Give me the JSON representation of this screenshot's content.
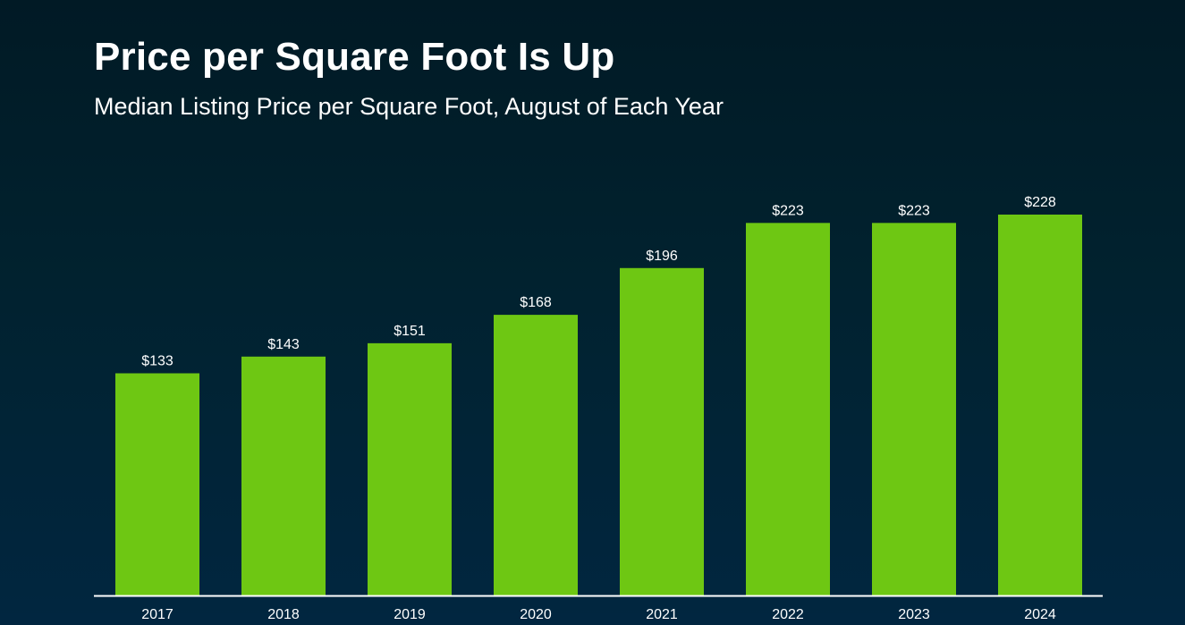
{
  "title": "Price per Square Foot Is Up",
  "subtitle": "Median Listing Price per Square Foot, August of Each Year",
  "colors": {
    "bar": "#6ec713",
    "axis": "#ffffff",
    "background_top": "#011a25",
    "background_bottom": "#012640"
  },
  "chart_data": {
    "type": "bar",
    "title": "Price per Square Foot Is Up",
    "subtitle": "Median Listing Price per Square Foot, August of Each Year",
    "categories": [
      "2017",
      "2018",
      "2019",
      "2020",
      "2021",
      "2022",
      "2023",
      "2024"
    ],
    "values": [
      133,
      143,
      151,
      168,
      196,
      223,
      223,
      228
    ],
    "data_labels": [
      "$133",
      "$143",
      "$151",
      "$168",
      "$196",
      "$223",
      "$223",
      "$228"
    ],
    "xlabel": "",
    "ylabel": "",
    "ylim": [
      0,
      228
    ],
    "grid": false,
    "legend": "none"
  }
}
